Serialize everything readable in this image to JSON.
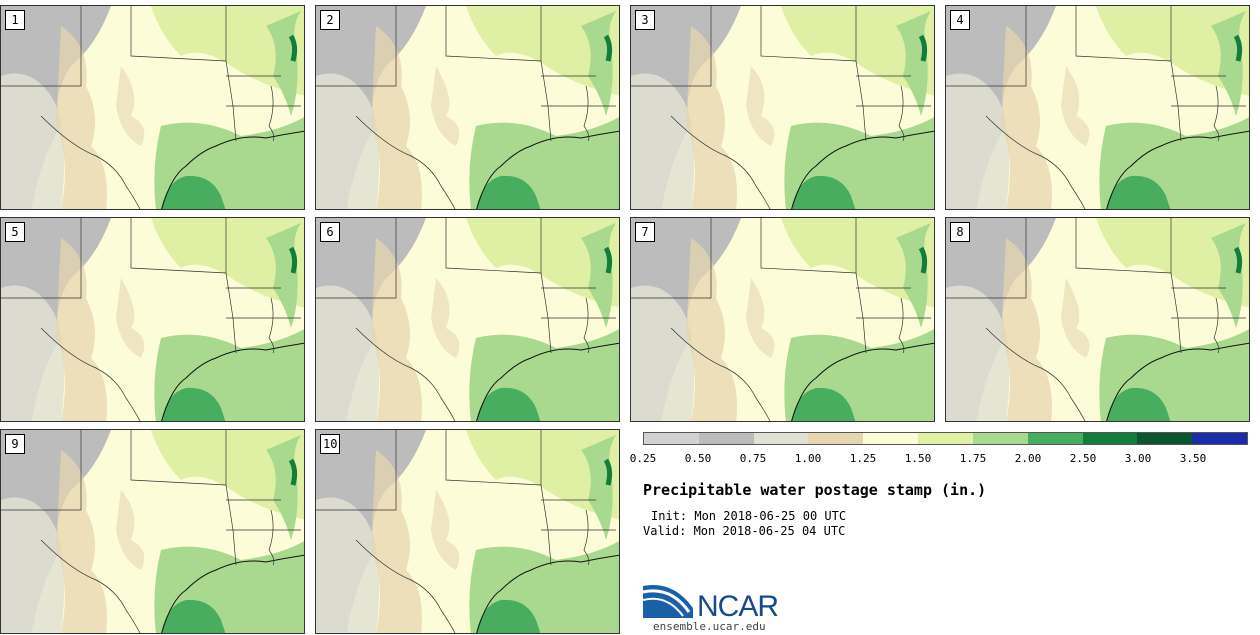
{
  "panels": [
    "1",
    "2",
    "3",
    "4",
    "5",
    "6",
    "7",
    "8",
    "9",
    "10"
  ],
  "colorbar": {
    "colors": [
      "#d2d2d2",
      "#bcbcbc",
      "#e0e0d4",
      "#e6d6b0",
      "#fdfcd8",
      "#dff0a4",
      "#a8d98f",
      "#48ad5e",
      "#137d3d",
      "#0c5530",
      "#1a2ca8"
    ],
    "ticks": [
      "0.25",
      "0.50",
      "0.75",
      "1.00",
      "1.25",
      "1.50",
      "1.75",
      "2.00",
      "2.50",
      "3.00",
      "3.50"
    ]
  },
  "title": "Precipitable water postage stamp (in.)",
  "init": "Init: Mon 2018-06-25 00 UTC",
  "valid": "Valid: Mon 2018-06-25 04 UTC",
  "logo": {
    "text": "NCAR",
    "url": "ensemble.ucar.edu"
  }
}
